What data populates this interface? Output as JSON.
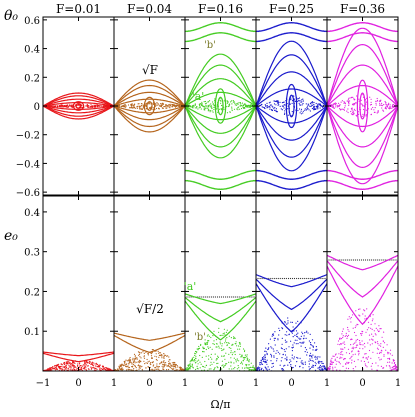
{
  "chart_data": {
    "type": "scatter",
    "x_axis": {
      "label": "Ω/π",
      "range": [
        -1,
        1
      ],
      "ticks": [
        -1,
        0,
        1
      ],
      "tick_labels": [
        "−1",
        "0",
        "1"
      ]
    },
    "rows": [
      {
        "ylabel": "θ₀",
        "ylim": [
          -0.62,
          0.62
        ],
        "yticks": [
          -0.6,
          -0.4,
          -0.2,
          0,
          0.2,
          0.4,
          0.6
        ],
        "ytick_labels": [
          "−0.6",
          "−0.4",
          "−0.2",
          "0",
          "0.2",
          "0.4",
          "0.6"
        ]
      },
      {
        "ylabel": "e₀",
        "ylim": [
          0,
          0.44
        ],
        "yticks": [
          0,
          0.1,
          0.2,
          0.3,
          0.4
        ],
        "ytick_labels": [
          "",
          "0.1",
          "0.2",
          "0.3",
          "0.4"
        ]
      }
    ],
    "panels": [
      {
        "F": "F=0.01",
        "color": "#e8161a",
        "theta_band": 0.1,
        "e_sep": 0.05
      },
      {
        "F": "F=0.04",
        "color": "#b5651d",
        "theta_band": 0.2,
        "e_sep": 0.1
      },
      {
        "F": "F=0.16",
        "color": "#44cc22",
        "theta_band": 0.4,
        "e_sep": 0.2
      },
      {
        "F": "F=0.25",
        "color": "#1a1acc",
        "theta_band": 0.5,
        "e_sep": 0.25
      },
      {
        "F": "F=0.36",
        "color": "#e020e0",
        "theta_band": 0.6,
        "e_sep": 0.3
      }
    ],
    "annotations": [
      {
        "panel": 1,
        "row": 0,
        "text": "√F"
      },
      {
        "panel": 1,
        "row": 1,
        "text": "√F/2"
      },
      {
        "panel": 2,
        "row": 0,
        "text": "'a'"
      },
      {
        "panel": 2,
        "row": 0,
        "text": "'b'"
      },
      {
        "panel": 2,
        "row": 1,
        "text": "'a'"
      },
      {
        "panel": 2,
        "row": 1,
        "text": "'b'"
      }
    ],
    "grid": false
  }
}
